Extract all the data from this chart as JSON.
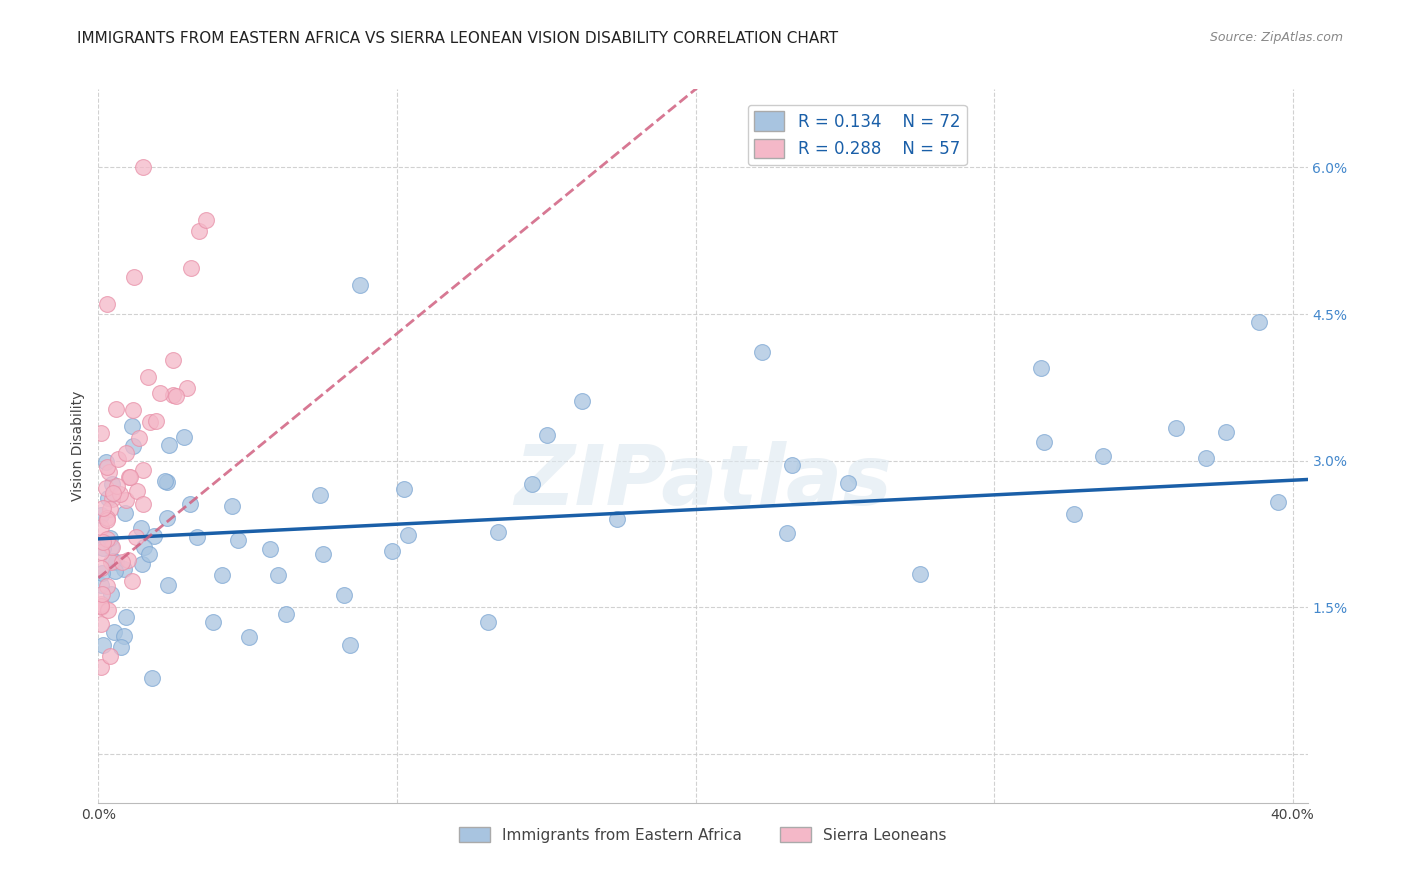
{
  "title": "IMMIGRANTS FROM EASTERN AFRICA VS SIERRA LEONEAN VISION DISABILITY CORRELATION CHART",
  "source": "Source: ZipAtlas.com",
  "ylabel": "Vision Disability",
  "r_blue": 0.134,
  "n_blue": 72,
  "r_pink": 0.288,
  "n_pink": 57,
  "blue_color": "#a8c4e0",
  "blue_edge": "#7fa8d4",
  "pink_color": "#f4b8c8",
  "pink_edge": "#e890a8",
  "blue_line_color": "#1a5fa8",
  "pink_line_color": "#d06080",
  "legend_blue_label": "Immigrants from Eastern Africa",
  "legend_pink_label": "Sierra Leoneans",
  "watermark": "ZIPatlas",
  "background_color": "#ffffff",
  "grid_color": "#cccccc",
  "xlim": [
    0.0,
    0.405
  ],
  "ylim": [
    -0.005,
    0.068
  ],
  "ytick_vals": [
    0.0,
    0.015,
    0.03,
    0.045,
    0.06
  ],
  "ytick_labels": [
    "",
    "1.5%",
    "3.0%",
    "4.5%",
    "6.0%"
  ],
  "xtick_vals": [
    0.0,
    0.1,
    0.2,
    0.3,
    0.4
  ],
  "xtick_labels": [
    "0.0%",
    "",
    "",
    "",
    "40.0%"
  ],
  "title_fontsize": 11,
  "source_fontsize": 9,
  "axis_label_fontsize": 10,
  "tick_fontsize": 10,
  "legend_fontsize": 11,
  "watermark_fontsize": 60
}
